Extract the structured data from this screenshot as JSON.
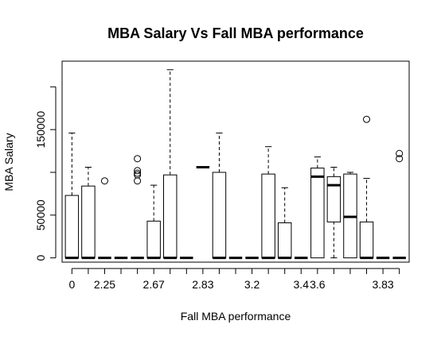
{
  "chart_data": {
    "type": "boxplot",
    "title": "MBA Salary Vs Fall MBA performance",
    "xlabel": "Fall MBA performance",
    "ylabel": "MBA Salary",
    "ylim": [
      -5000,
      230000
    ],
    "y_ticks": [
      0,
      50000,
      150000
    ],
    "y_tick_labels": [
      "0",
      "50000",
      "150000"
    ],
    "x_tick_positions": [
      1,
      3,
      6,
      9,
      12,
      15,
      16,
      20
    ],
    "x_tick_labels": [
      "0",
      "2.25",
      "2.67",
      "2.83",
      "3.2",
      "3.4",
      "3.6",
      "3.83"
    ],
    "boxes": [
      {
        "pos": 1,
        "min": 0,
        "q1": 0,
        "median": 0,
        "q3": 73000,
        "max": 146000,
        "outliers": []
      },
      {
        "pos": 2,
        "min": 0,
        "q1": 0,
        "median": 0,
        "q3": 84000,
        "max": 106000,
        "outliers": []
      },
      {
        "pos": 3,
        "min": 0,
        "q1": 0,
        "median": 0,
        "q3": 0,
        "max": 0,
        "outliers": [
          90000
        ]
      },
      {
        "pos": 4,
        "min": 0,
        "q1": 0,
        "median": 0,
        "q3": 0,
        "max": 0,
        "outliers": []
      },
      {
        "pos": 5,
        "min": 0,
        "q1": 0,
        "median": 0,
        "q3": 0,
        "max": 0,
        "outliers": [
          116000,
          102000,
          99000,
          97000,
          90000
        ]
      },
      {
        "pos": 6,
        "min": 0,
        "q1": 0,
        "median": 0,
        "q3": 43000,
        "max": 85000,
        "outliers": []
      },
      {
        "pos": 7,
        "min": 0,
        "q1": 0,
        "median": 0,
        "q3": 97000,
        "max": 220000,
        "outliers": []
      },
      {
        "pos": 8,
        "min": 0,
        "q1": 0,
        "median": 0,
        "q3": 0,
        "max": 0,
        "outliers": []
      },
      {
        "pos": 9,
        "min": 106000,
        "q1": 106000,
        "median": 106000,
        "q3": 106000,
        "max": 106000,
        "outliers": []
      },
      {
        "pos": 10,
        "min": 0,
        "q1": 0,
        "median": 0,
        "q3": 100000,
        "max": 146000,
        "outliers": []
      },
      {
        "pos": 11,
        "min": 0,
        "q1": 0,
        "median": 0,
        "q3": 0,
        "max": 0,
        "outliers": []
      },
      {
        "pos": 12,
        "min": 0,
        "q1": 0,
        "median": 0,
        "q3": 0,
        "max": 0,
        "outliers": []
      },
      {
        "pos": 13,
        "min": 0,
        "q1": 0,
        "median": 0,
        "q3": 98000,
        "max": 130000,
        "outliers": []
      },
      {
        "pos": 14,
        "min": 0,
        "q1": 0,
        "median": 0,
        "q3": 41000,
        "max": 82000,
        "outliers": []
      },
      {
        "pos": 15,
        "min": 0,
        "q1": 0,
        "median": 0,
        "q3": 0,
        "max": 0,
        "outliers": []
      },
      {
        "pos": 16,
        "min": 0,
        "q1": 0,
        "median": 95000,
        "q3": 105000,
        "max": 118000,
        "outliers": []
      },
      {
        "pos": 17,
        "min": 0,
        "q1": 42000,
        "median": 85000,
        "q3": 95000,
        "max": 106000,
        "outliers": []
      },
      {
        "pos": 18,
        "min": 0,
        "q1": 0,
        "median": 48000,
        "q3": 98000,
        "max": 100000,
        "outliers": []
      },
      {
        "pos": 19,
        "min": 0,
        "q1": 0,
        "median": 0,
        "q3": 42000,
        "max": 93000,
        "outliers": [
          162000
        ]
      },
      {
        "pos": 20,
        "min": 0,
        "q1": 0,
        "median": 0,
        "q3": 0,
        "max": 0,
        "outliers": []
      },
      {
        "pos": 21,
        "min": 0,
        "q1": 0,
        "median": 0,
        "q3": 0,
        "max": 0,
        "outliers": [
          122000,
          116000
        ]
      }
    ]
  }
}
